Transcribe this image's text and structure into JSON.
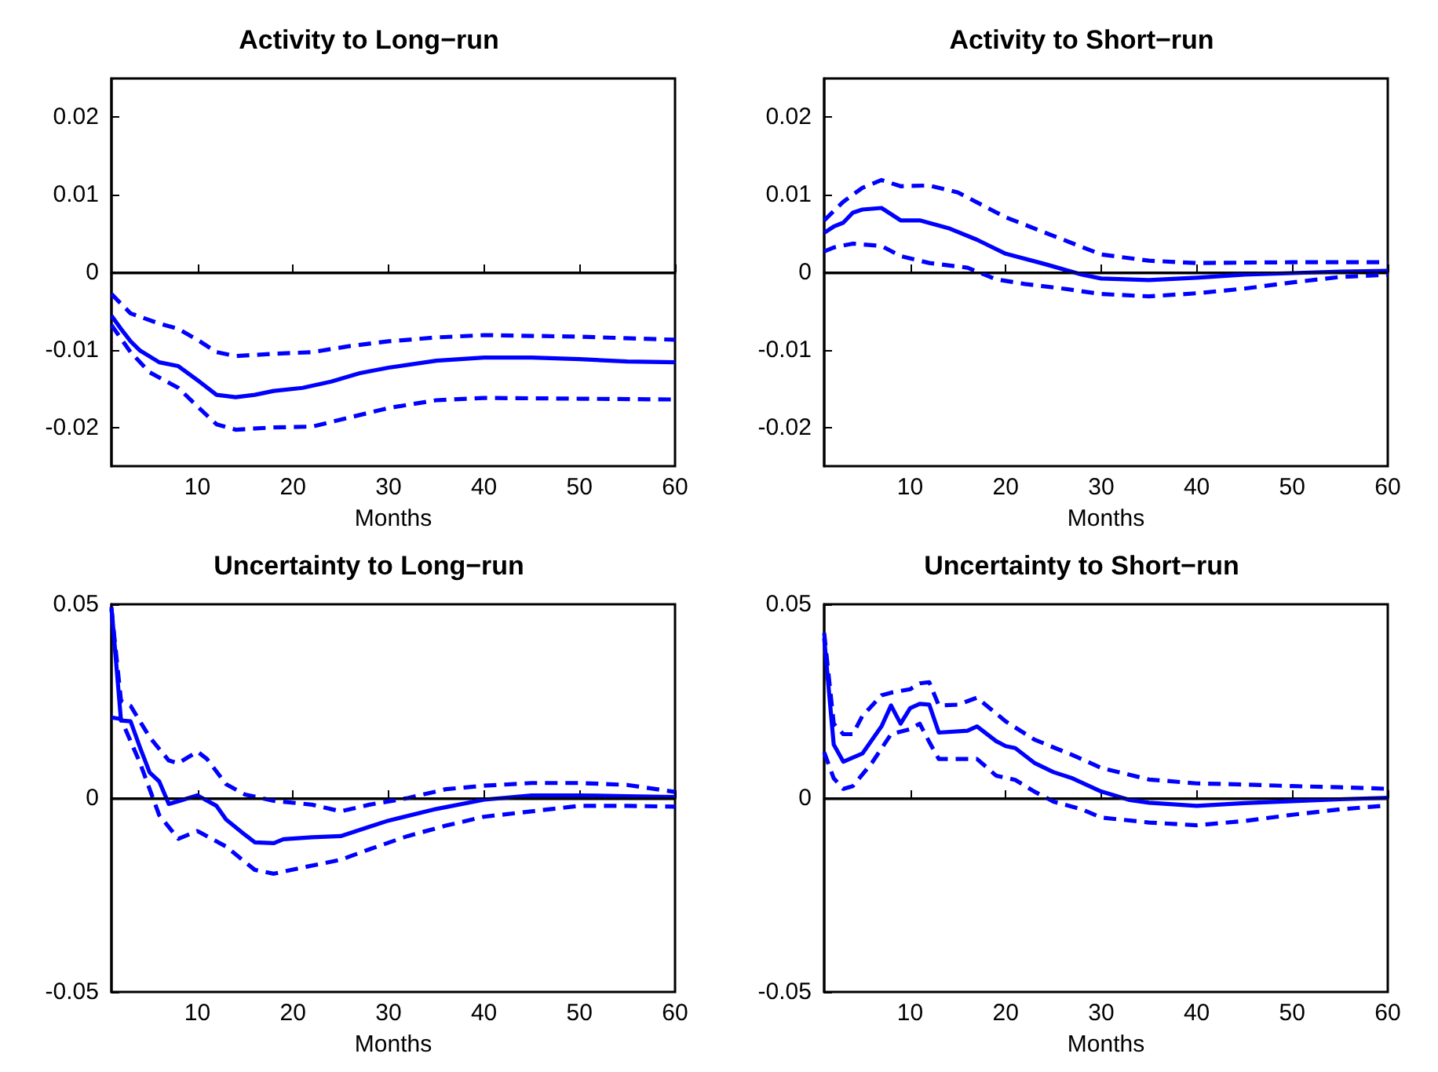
{
  "chart_data": [
    {
      "type": "line",
      "title": "Activity to Long−run",
      "xlabel": "Months",
      "xlim": [
        1,
        60
      ],
      "xticks": [
        10,
        20,
        30,
        40,
        50,
        60
      ],
      "ylim": [
        -0.025,
        0.025
      ],
      "yticks": [
        -0.02,
        -0.01,
        0,
        0.01,
        0.02
      ],
      "ref_lines": [
        {
          "axis": "y",
          "value": 0,
          "color": "#000000"
        }
      ],
      "series": [
        {
          "color": "#0000ff",
          "line_style": "solid",
          "x": [
            1,
            2,
            3,
            4,
            6,
            8,
            10,
            12,
            14,
            16,
            18,
            21,
            24,
            27,
            30,
            35,
            40,
            45,
            50,
            55,
            60
          ],
          "values": [
            -0.0056,
            -0.0073,
            -0.0089,
            -0.0101,
            -0.0116,
            -0.0121,
            -0.0139,
            -0.0158,
            -0.0161,
            -0.0158,
            -0.0153,
            -0.0149,
            -0.0141,
            -0.013,
            -0.0123,
            -0.0114,
            -0.011,
            -0.011,
            -0.0112,
            -0.0115,
            -0.0116
          ]
        },
        {
          "color": "#0000ff",
          "line_style": "dashed",
          "x": [
            1,
            3,
            6,
            8,
            10,
            12,
            14,
            18,
            22,
            26,
            30,
            35,
            40,
            50,
            60
          ],
          "values": [
            -0.0028,
            -0.0053,
            -0.0066,
            -0.0073,
            -0.0087,
            -0.0103,
            -0.0108,
            -0.0105,
            -0.0103,
            -0.0095,
            -0.0089,
            -0.0084,
            -0.0081,
            -0.0083,
            -0.0087
          ]
        },
        {
          "color": "#0000ff",
          "line_style": "dashed",
          "x": [
            1,
            3,
            5,
            8,
            10,
            12,
            14,
            18,
            22,
            26,
            30,
            35,
            40,
            50,
            60
          ],
          "values": [
            -0.0068,
            -0.0103,
            -0.0129,
            -0.0149,
            -0.0173,
            -0.0196,
            -0.0203,
            -0.02,
            -0.0199,
            -0.0187,
            -0.0175,
            -0.0165,
            -0.0162,
            -0.0163,
            -0.0164
          ]
        }
      ]
    },
    {
      "type": "line",
      "title": "Activity to Short−run",
      "xlabel": "Months",
      "xlim": [
        1,
        60
      ],
      "xticks": [
        10,
        20,
        30,
        40,
        50,
        60
      ],
      "ylim": [
        -0.025,
        0.025
      ],
      "yticks": [
        -0.02,
        -0.01,
        0,
        0.01,
        0.02
      ],
      "ref_lines": [
        {
          "axis": "y",
          "value": 0,
          "color": "#000000"
        }
      ],
      "series": [
        {
          "color": "#0000ff",
          "line_style": "solid",
          "x": [
            1,
            2,
            3,
            4,
            5,
            7,
            9,
            11,
            14,
            17,
            20,
            24,
            28,
            30,
            35,
            40,
            45,
            50,
            55,
            60
          ],
          "values": [
            0.0051,
            0.0059,
            0.0064,
            0.0077,
            0.0081,
            0.0083,
            0.0067,
            0.0067,
            0.0057,
            0.0042,
            0.0024,
            0.0011,
            -0.0003,
            -0.0008,
            -0.001,
            -0.0007,
            -0.0003,
            -0.0001,
            0.0001,
            0.0002
          ]
        },
        {
          "color": "#0000ff",
          "line_style": "dashed",
          "x": [
            1,
            3,
            5,
            7,
            9,
            12,
            15,
            20,
            25,
            30,
            35,
            40,
            50,
            60
          ],
          "values": [
            0.0067,
            0.0091,
            0.0109,
            0.0119,
            0.0111,
            0.0112,
            0.0103,
            0.0071,
            0.0047,
            0.0023,
            0.0015,
            0.0012,
            0.0013,
            0.0013
          ]
        },
        {
          "color": "#0000ff",
          "line_style": "dashed",
          "x": [
            1,
            2,
            4,
            7,
            9,
            12,
            16,
            19,
            22,
            26,
            30,
            35,
            40,
            45,
            50,
            55,
            60
          ],
          "values": [
            0.0027,
            0.0032,
            0.0037,
            0.0034,
            0.0021,
            0.0012,
            0.0006,
            -0.0009,
            -0.0015,
            -0.0021,
            -0.0028,
            -0.0031,
            -0.0027,
            -0.0021,
            -0.0013,
            -0.0006,
            -0.0003
          ]
        }
      ]
    },
    {
      "type": "line",
      "title": "Uncertainty to Long−run",
      "xlabel": "Months",
      "xlim": [
        1,
        60
      ],
      "xticks": [
        10,
        20,
        30,
        40,
        50,
        60
      ],
      "ylim": [
        -0.05,
        0.05
      ],
      "yticks": [
        -0.05,
        0,
        0.05
      ],
      "ref_lines": [
        {
          "axis": "y",
          "value": 0,
          "color": "#000000"
        }
      ],
      "series": [
        {
          "color": "#0000ff",
          "line_style": "solid",
          "x": [
            1,
            2,
            3,
            4,
            5,
            6,
            7,
            8,
            10,
            12,
            13,
            15,
            16,
            18,
            19,
            22,
            25,
            28,
            30,
            35,
            40,
            45,
            50,
            55,
            60
          ],
          "values": [
            0.0493,
            0.02,
            0.0198,
            0.013,
            0.0066,
            0.0043,
            -0.0015,
            -0.0008,
            0.0007,
            -0.002,
            -0.0055,
            -0.0095,
            -0.0114,
            -0.0116,
            -0.0106,
            -0.0101,
            -0.0098,
            -0.0074,
            -0.0058,
            -0.0028,
            -0.0004,
            0.0007,
            0.0007,
            0.0005,
            0.0003
          ]
        },
        {
          "color": "#0000ff",
          "line_style": "dashed",
          "x": [
            1,
            2,
            3,
            5,
            7,
            8,
            10,
            11,
            13,
            15,
            18,
            22,
            25,
            28,
            32,
            36,
            40,
            45,
            50,
            55,
            60
          ],
          "values": [
            0.0487,
            0.0251,
            0.0238,
            0.0157,
            0.0097,
            0.009,
            0.012,
            0.0101,
            0.0036,
            0.0009,
            -0.0007,
            -0.0017,
            -0.0034,
            -0.0017,
            0,
            0.0023,
            0.0032,
            0.0039,
            0.0039,
            0.0034,
            0.0016
          ]
        },
        {
          "color": "#0000ff",
          "line_style": "dashed",
          "x": [
            1,
            2,
            4,
            6,
            8,
            10,
            13,
            16,
            18,
            21,
            25,
            28,
            32,
            36,
            40,
            45,
            50,
            55,
            60
          ],
          "values": [
            0.0208,
            0.0204,
            0.009,
            -0.0044,
            -0.0105,
            -0.0085,
            -0.0125,
            -0.0185,
            -0.0195,
            -0.0179,
            -0.0159,
            -0.0132,
            -0.0098,
            -0.0071,
            -0.0048,
            -0.0034,
            -0.002,
            -0.002,
            -0.0022
          ]
        }
      ]
    },
    {
      "type": "line",
      "title": "Uncertainty to Short−run",
      "xlabel": "Months",
      "xlim": [
        1,
        60
      ],
      "xticks": [
        10,
        20,
        30,
        40,
        50,
        60
      ],
      "ylim": [
        -0.05,
        0.05
      ],
      "yticks": [
        -0.05,
        0,
        0.05
      ],
      "ref_lines": [
        {
          "axis": "y",
          "value": 0,
          "color": "#000000"
        }
      ],
      "series": [
        {
          "color": "#0000ff",
          "line_style": "solid",
          "x": [
            1,
            2,
            3,
            5,
            7,
            8,
            9,
            10,
            11,
            12,
            13,
            16,
            17,
            19,
            20,
            21,
            23,
            25,
            27,
            30,
            33,
            35,
            40,
            45,
            50,
            55,
            60
          ],
          "values": [
            0.0413,
            0.0138,
            0.0094,
            0.0115,
            0.0185,
            0.0239,
            0.0192,
            0.0232,
            0.0243,
            0.0241,
            0.0169,
            0.0174,
            0.0185,
            0.0147,
            0.0134,
            0.0129,
            0.0091,
            0.0067,
            0.0051,
            0.0017,
            -0.0005,
            -0.0012,
            -0.002,
            -0.0013,
            -0.0008,
            -0.0003,
            0.0001
          ]
        },
        {
          "color": "#0000ff",
          "line_style": "dashed",
          "x": [
            1,
            2,
            3,
            4,
            5,
            7,
            8,
            10,
            11,
            12,
            13,
            15,
            17,
            20,
            23,
            27,
            30,
            35,
            40,
            45,
            50,
            55,
            60
          ],
          "values": [
            0.0426,
            0.0192,
            0.0165,
            0.0165,
            0.0212,
            0.0265,
            0.0272,
            0.0281,
            0.0296,
            0.0299,
            0.0239,
            0.0241,
            0.0259,
            0.0198,
            0.0151,
            0.0111,
            0.0078,
            0.0048,
            0.0038,
            0.0035,
            0.0031,
            0.0028,
            0.0024
          ]
        },
        {
          "color": "#0000ff",
          "line_style": "dashed",
          "x": [
            1,
            2,
            3,
            4,
            6,
            8,
            10,
            11,
            12,
            13,
            15,
            17,
            19,
            21,
            23,
            25,
            28,
            30,
            35,
            40,
            45,
            50,
            55,
            60
          ],
          "values": [
            0.0118,
            0.0051,
            0.0024,
            0.0031,
            0.0091,
            0.0165,
            0.0178,
            0.0192,
            0.0145,
            0.0101,
            0.0101,
            0.0101,
            0.0058,
            0.0047,
            0.0017,
            -0.0009,
            -0.0029,
            -0.005,
            -0.0063,
            -0.007,
            -0.0059,
            -0.0043,
            -0.0029,
            -0.0019
          ]
        }
      ]
    }
  ]
}
